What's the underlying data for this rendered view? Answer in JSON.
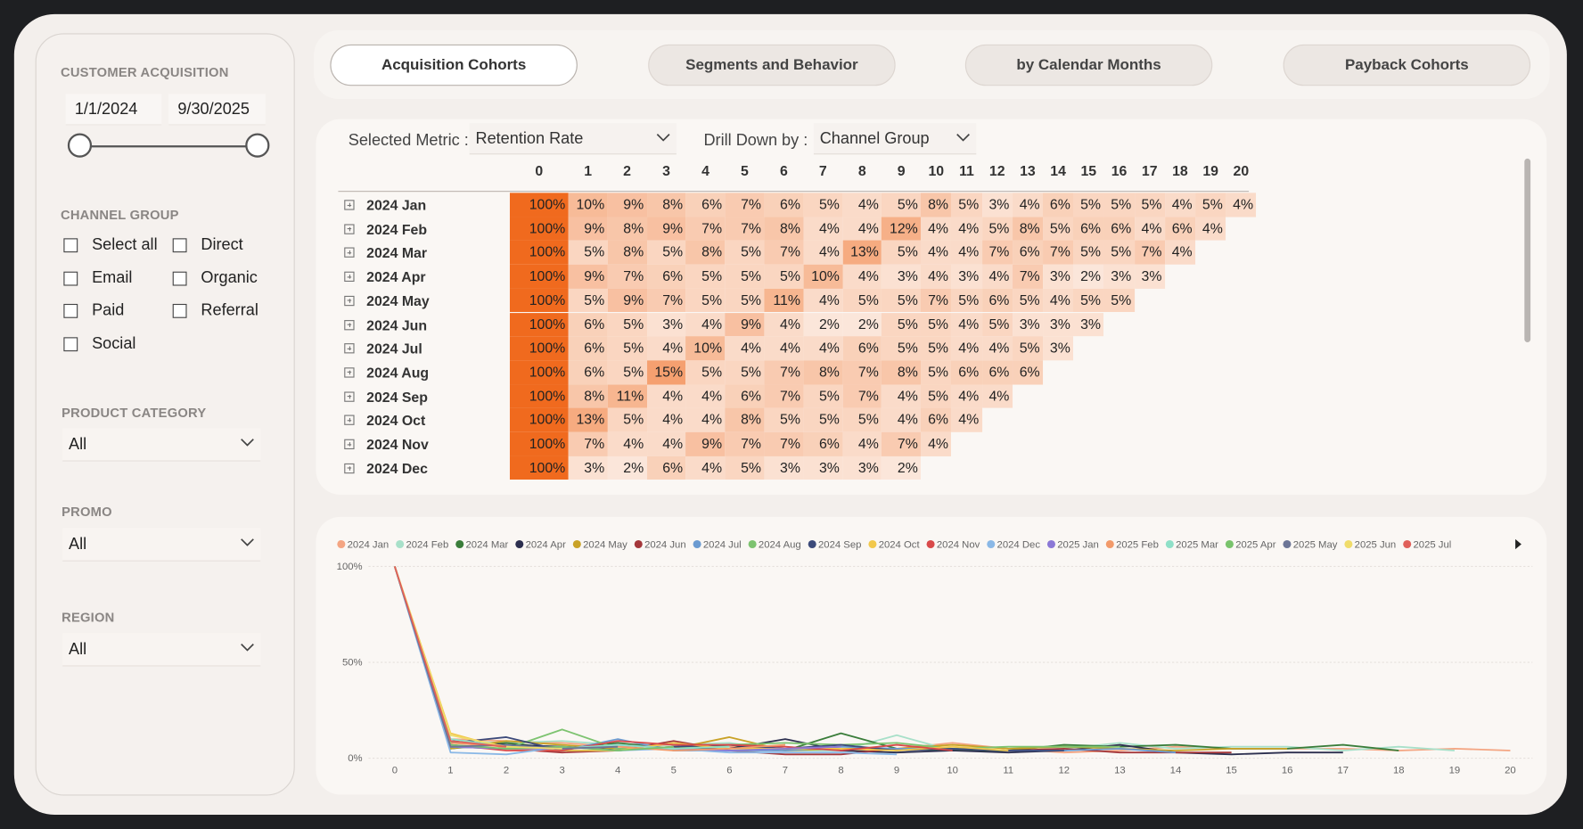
{
  "sidebar": {
    "acquisition": {
      "title": "CUSTOMER ACQUISITION",
      "start": "1/1/2024",
      "end": "9/30/2025"
    },
    "channel_group": {
      "title": "CHANNEL GROUP",
      "options": [
        "Select all",
        "Direct",
        "Email",
        "Organic",
        "Paid",
        "Referral",
        "Social"
      ]
    },
    "dropdowns": [
      {
        "title": "PRODUCT CATEGORY",
        "value": "All"
      },
      {
        "title": "PROMO",
        "value": "All"
      },
      {
        "title": "REGION",
        "value": "All"
      }
    ]
  },
  "tabs": [
    "Acquisition Cohorts",
    "Segments and Behavior",
    "by Calendar Months",
    "Payback Cohorts"
  ],
  "controls": {
    "metric_label": "Selected Metric :",
    "metric": "Retention Rate",
    "drill_label": "Drill Down by :",
    "drill": "Channel Group"
  },
  "table": {
    "columns": [
      0,
      1,
      2,
      3,
      4,
      5,
      6,
      7,
      8,
      9,
      10,
      11,
      12,
      13,
      14,
      15,
      16,
      17,
      18,
      19,
      20
    ],
    "rows": [
      {
        "label": "2024 Jan",
        "cells": [
          "100%",
          "10%",
          "9%",
          "8%",
          "6%",
          "7%",
          "6%",
          "5%",
          "4%",
          "5%",
          "8%",
          "5%",
          "3%",
          "4%",
          "6%",
          "5%",
          "5%",
          "5%",
          "4%",
          "5%",
          "4%"
        ]
      },
      {
        "label": "2024 Feb",
        "cells": [
          "100%",
          "9%",
          "8%",
          "9%",
          "7%",
          "7%",
          "8%",
          "4%",
          "4%",
          "12%",
          "4%",
          "4%",
          "5%",
          "8%",
          "5%",
          "6%",
          "6%",
          "4%",
          "6%",
          "4%"
        ]
      },
      {
        "label": "2024 Mar",
        "cells": [
          "100%",
          "5%",
          "8%",
          "5%",
          "8%",
          "5%",
          "7%",
          "4%",
          "13%",
          "5%",
          "4%",
          "4%",
          "7%",
          "6%",
          "7%",
          "5%",
          "5%",
          "7%",
          "4%"
        ]
      },
      {
        "label": "2024 Apr",
        "cells": [
          "100%",
          "9%",
          "7%",
          "6%",
          "5%",
          "5%",
          "5%",
          "10%",
          "4%",
          "3%",
          "4%",
          "3%",
          "4%",
          "7%",
          "3%",
          "2%",
          "3%",
          "3%"
        ]
      },
      {
        "label": "2024 May",
        "cells": [
          "100%",
          "5%",
          "9%",
          "7%",
          "5%",
          "5%",
          "11%",
          "4%",
          "5%",
          "5%",
          "7%",
          "5%",
          "6%",
          "5%",
          "4%",
          "5%",
          "5%"
        ]
      },
      {
        "label": "2024 Jun",
        "cells": [
          "100%",
          "6%",
          "5%",
          "3%",
          "4%",
          "9%",
          "4%",
          "2%",
          "2%",
          "5%",
          "5%",
          "4%",
          "5%",
          "3%",
          "3%",
          "3%"
        ]
      },
      {
        "label": "2024 Jul",
        "cells": [
          "100%",
          "6%",
          "5%",
          "4%",
          "10%",
          "4%",
          "4%",
          "4%",
          "6%",
          "5%",
          "5%",
          "4%",
          "4%",
          "5%",
          "3%"
        ]
      },
      {
        "label": "2024 Aug",
        "cells": [
          "100%",
          "6%",
          "5%",
          "15%",
          "5%",
          "5%",
          "7%",
          "8%",
          "7%",
          "8%",
          "5%",
          "6%",
          "6%",
          "6%"
        ]
      },
      {
        "label": "2024 Sep",
        "cells": [
          "100%",
          "8%",
          "11%",
          "4%",
          "4%",
          "6%",
          "7%",
          "5%",
          "7%",
          "4%",
          "5%",
          "4%",
          "4%"
        ]
      },
      {
        "label": "2024 Oct",
        "cells": [
          "100%",
          "13%",
          "5%",
          "4%",
          "4%",
          "8%",
          "5%",
          "5%",
          "5%",
          "4%",
          "6%",
          "4%"
        ]
      },
      {
        "label": "2024 Nov",
        "cells": [
          "100%",
          "7%",
          "4%",
          "4%",
          "9%",
          "7%",
          "7%",
          "6%",
          "4%",
          "7%",
          "4%"
        ]
      },
      {
        "label": "2024 Dec",
        "cells": [
          "100%",
          "3%",
          "2%",
          "6%",
          "4%",
          "5%",
          "3%",
          "3%",
          "3%",
          "2%"
        ]
      }
    ]
  },
  "chart_data": {
    "type": "line",
    "x": [
      0,
      1,
      2,
      3,
      4,
      5,
      6,
      7,
      8,
      9,
      10,
      11,
      12,
      13,
      14,
      15,
      16,
      17,
      18,
      19,
      20
    ],
    "xlim": [
      0,
      20
    ],
    "xticks": [
      0,
      1,
      2,
      3,
      4,
      5,
      6,
      7,
      8,
      9,
      10,
      11,
      12,
      13,
      14,
      15,
      16,
      17,
      18,
      19,
      20
    ],
    "ylim": [
      0,
      100
    ],
    "yticks": [
      {
        "value": 0,
        "label": "0%"
      },
      {
        "value": 50,
        "label": "50%"
      },
      {
        "value": 100,
        "label": "100%"
      }
    ],
    "grid": true,
    "series": [
      {
        "name": "2024 Jan",
        "color": "#f4a582",
        "values": [
          100,
          10,
          9,
          8,
          6,
          7,
          6,
          5,
          4,
          5,
          8,
          5,
          3,
          4,
          6,
          5,
          5,
          5,
          4,
          5,
          4
        ]
      },
      {
        "name": "2024 Feb",
        "color": "#a8e0c9",
        "values": [
          100,
          9,
          8,
          9,
          7,
          7,
          8,
          4,
          4,
          12,
          4,
          4,
          5,
          8,
          5,
          6,
          6,
          4,
          6,
          4,
          null
        ]
      },
      {
        "name": "2024 Mar",
        "color": "#3a7d3a",
        "values": [
          100,
          5,
          8,
          5,
          8,
          5,
          7,
          4,
          13,
          5,
          4,
          4,
          7,
          6,
          7,
          5,
          5,
          7,
          4,
          null,
          null
        ]
      },
      {
        "name": "2024 Apr",
        "color": "#2c2f4f",
        "values": [
          100,
          9,
          7,
          6,
          5,
          5,
          5,
          10,
          4,
          3,
          4,
          3,
          4,
          7,
          3,
          2,
          3,
          3,
          null,
          null,
          null
        ]
      },
      {
        "name": "2024 May",
        "color": "#c9a227",
        "values": [
          100,
          5,
          9,
          7,
          5,
          5,
          11,
          4,
          5,
          5,
          7,
          5,
          6,
          5,
          4,
          5,
          5,
          null,
          null,
          null,
          null
        ]
      },
      {
        "name": "2024 Jun",
        "color": "#a4373a",
        "values": [
          100,
          6,
          5,
          3,
          4,
          9,
          4,
          2,
          2,
          5,
          5,
          4,
          5,
          3,
          3,
          3,
          null,
          null,
          null,
          null,
          null
        ]
      },
      {
        "name": "2024 Jul",
        "color": "#6b9bd1",
        "values": [
          100,
          6,
          5,
          4,
          10,
          4,
          4,
          4,
          6,
          5,
          5,
          4,
          4,
          5,
          3,
          null,
          null,
          null,
          null,
          null,
          null
        ]
      },
      {
        "name": "2024 Aug",
        "color": "#7dc370",
        "values": [
          100,
          6,
          5,
          15,
          5,
          5,
          7,
          8,
          7,
          8,
          5,
          6,
          6,
          6,
          null,
          null,
          null,
          null,
          null,
          null,
          null
        ]
      },
      {
        "name": "2024 Sep",
        "color": "#3c4a7a",
        "values": [
          100,
          8,
          11,
          4,
          4,
          6,
          7,
          5,
          7,
          4,
          5,
          4,
          4,
          null,
          null,
          null,
          null,
          null,
          null,
          null,
          null
        ]
      },
      {
        "name": "2024 Oct",
        "color": "#f2c84b",
        "values": [
          100,
          13,
          5,
          4,
          4,
          8,
          5,
          5,
          5,
          4,
          6,
          4,
          null,
          null,
          null,
          null,
          null,
          null,
          null,
          null,
          null
        ]
      },
      {
        "name": "2024 Nov",
        "color": "#d94a4a",
        "values": [
          100,
          7,
          4,
          4,
          9,
          7,
          7,
          6,
          4,
          7,
          4,
          null,
          null,
          null,
          null,
          null,
          null,
          null,
          null,
          null,
          null
        ]
      },
      {
        "name": "2024 Dec",
        "color": "#8ab8e6",
        "values": [
          100,
          3,
          2,
          6,
          4,
          5,
          3,
          3,
          3,
          2,
          null,
          null,
          null,
          null,
          null,
          null,
          null,
          null,
          null,
          null,
          null
        ]
      },
      {
        "name": "2025 Jan",
        "color": "#8b78d6",
        "values": [
          100,
          6,
          5,
          5,
          7,
          5,
          4,
          5,
          6,
          null,
          null,
          null,
          null,
          null,
          null,
          null,
          null,
          null,
          null,
          null,
          null
        ]
      },
      {
        "name": "2025 Feb",
        "color": "#f29a6a",
        "values": [
          100,
          8,
          6,
          5,
          6,
          4,
          5,
          7,
          null,
          null,
          null,
          null,
          null,
          null,
          null,
          null,
          null,
          null,
          null,
          null,
          null
        ]
      },
      {
        "name": "2025 Mar",
        "color": "#8fe0c8",
        "values": [
          100,
          10,
          6,
          5,
          7,
          5,
          6,
          null,
          null,
          null,
          null,
          null,
          null,
          null,
          null,
          null,
          null,
          null,
          null,
          null,
          null
        ]
      },
      {
        "name": "2025 Apr",
        "color": "#79c36c",
        "values": [
          100,
          7,
          5,
          6,
          4,
          6,
          null,
          null,
          null,
          null,
          null,
          null,
          null,
          null,
          null,
          null,
          null,
          null,
          null,
          null,
          null
        ]
      },
      {
        "name": "2025 May",
        "color": "#6c7596",
        "values": [
          100,
          6,
          7,
          5,
          6,
          null,
          null,
          null,
          null,
          null,
          null,
          null,
          null,
          null,
          null,
          null,
          null,
          null,
          null,
          null,
          null
        ]
      },
      {
        "name": "2025 Jun",
        "color": "#f0dc6a",
        "values": [
          100,
          12,
          6,
          5,
          null,
          null,
          null,
          null,
          null,
          null,
          null,
          null,
          null,
          null,
          null,
          null,
          null,
          null,
          null,
          null,
          null
        ]
      },
      {
        "name": "2025 Jul",
        "color": "#e0605a",
        "values": [
          100,
          9,
          6,
          null,
          null,
          null,
          null,
          null,
          null,
          null,
          null,
          null,
          null,
          null,
          null,
          null,
          null,
          null,
          null,
          null,
          null
        ]
      }
    ]
  }
}
